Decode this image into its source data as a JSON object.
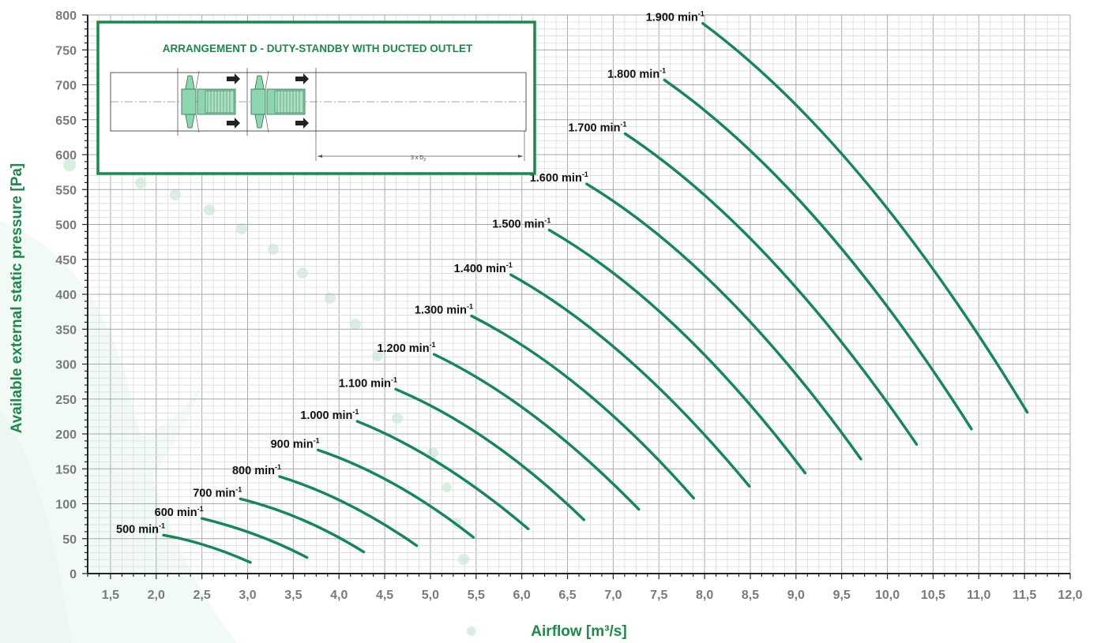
{
  "chart_data": {
    "type": "line",
    "xlabel": "Airflow [m³/s]",
    "ylabel": "Available external static pressure [Pa]",
    "xlim": [
      1.25,
      12.0
    ],
    "ylim": [
      0,
      800
    ],
    "x_ticks": [
      "1,5",
      "2,0",
      "2,5",
      "3,0",
      "3,5",
      "4,0",
      "4,5",
      "5,0",
      "5,5",
      "6,0",
      "6,5",
      "7,0",
      "7,5",
      "8,0",
      "8,5",
      "9,0",
      "9,5",
      "10,0",
      "10,5",
      "11,0",
      "11,5",
      "12,0"
    ],
    "y_ticks": [
      "0",
      "50",
      "100",
      "150",
      "200",
      "250",
      "300",
      "350",
      "400",
      "450",
      "500",
      "550",
      "600",
      "650",
      "700",
      "750",
      "800"
    ],
    "grid": true,
    "series": [
      {
        "name": "500 min",
        "superscript": "-1",
        "points": [
          [
            2.08,
            55
          ],
          [
            2.55,
            40
          ],
          [
            3.03,
            16
          ]
        ]
      },
      {
        "name": "600 min",
        "superscript": "-1",
        "points": [
          [
            2.5,
            79
          ],
          [
            3.1,
            55
          ],
          [
            3.65,
            23
          ]
        ]
      },
      {
        "name": "700 min",
        "superscript": "-1",
        "points": [
          [
            2.92,
            107
          ],
          [
            3.6,
            77
          ],
          [
            4.27,
            31
          ]
        ]
      },
      {
        "name": "800 min",
        "superscript": "-1",
        "points": [
          [
            3.35,
            139
          ],
          [
            4.1,
            99
          ],
          [
            4.85,
            40
          ]
        ]
      },
      {
        "name": "900 min",
        "superscript": "-1",
        "points": [
          [
            3.77,
            177
          ],
          [
            4.62,
            127
          ],
          [
            5.47,
            52
          ]
        ]
      },
      {
        "name": "1.000 min",
        "superscript": "-1",
        "points": [
          [
            4.2,
            218
          ],
          [
            5.12,
            156
          ],
          [
            6.07,
            64
          ]
        ]
      },
      {
        "name": "1.100 min",
        "superscript": "-1",
        "points": [
          [
            4.62,
            264
          ],
          [
            5.65,
            189
          ],
          [
            6.68,
            77
          ]
        ]
      },
      {
        "name": "1.200 min",
        "superscript": "-1",
        "points": [
          [
            5.04,
            314
          ],
          [
            6.15,
            224
          ],
          [
            7.28,
            92
          ]
        ]
      },
      {
        "name": "1.300 min",
        "superscript": "-1",
        "points": [
          [
            5.45,
            369
          ],
          [
            6.67,
            263
          ],
          [
            7.88,
            108
          ]
        ]
      },
      {
        "name": "1.400 min",
        "superscript": "-1",
        "points": [
          [
            5.88,
            428
          ],
          [
            7.17,
            306
          ],
          [
            8.49,
            125
          ]
        ]
      },
      {
        "name": "1.500 min",
        "superscript": "-1",
        "points": [
          [
            6.3,
            492
          ],
          [
            7.7,
            352
          ],
          [
            9.1,
            144
          ]
        ]
      },
      {
        "name": "1.600 min",
        "superscript": "-1",
        "points": [
          [
            6.71,
            558
          ],
          [
            8.21,
            400
          ],
          [
            9.71,
            164
          ]
        ]
      },
      {
        "name": "1.700 min",
        "superscript": "-1",
        "points": [
          [
            7.13,
            630
          ],
          [
            8.72,
            450
          ],
          [
            10.32,
            185
          ]
        ]
      },
      {
        "name": "1.800 min",
        "superscript": "-1",
        "points": [
          [
            7.56,
            707
          ],
          [
            9.24,
            505
          ],
          [
            10.92,
            207
          ]
        ]
      },
      {
        "name": "1.900 min",
        "superscript": "-1",
        "points": [
          [
            7.98,
            788
          ],
          [
            9.75,
            563
          ],
          [
            11.53,
            231
          ]
        ]
      }
    ],
    "line_color": "#14875a",
    "inset": {
      "title": "ARRANGEMENT D - DUTY-STANDBY WITH DUCTED OUTLET",
      "dimension_label": "3 x D",
      "dimension_subscript": "2",
      "accent_color": "#1b8a48",
      "fan_color": "#8ed6b0"
    }
  }
}
